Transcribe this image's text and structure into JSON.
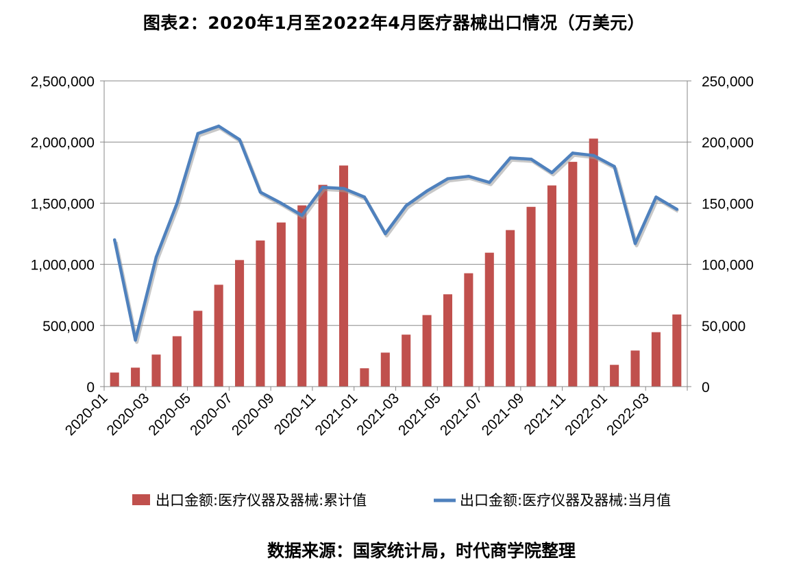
{
  "chart_data": {
    "type": "bar+line",
    "title": "图表2：2020年1月至2022年4月医疗器械出口情况（万美元）",
    "source_note": "数据来源：国家统计局，时代商学院整理",
    "categories": [
      "2020-01",
      "2020-02",
      "2020-03",
      "2020-04",
      "2020-05",
      "2020-06",
      "2020-07",
      "2020-08",
      "2020-09",
      "2020-10",
      "2020-11",
      "2020-12",
      "2021-01",
      "2021-02",
      "2021-03",
      "2021-04",
      "2021-05",
      "2021-06",
      "2021-07",
      "2021-08",
      "2021-09",
      "2021-10",
      "2021-11",
      "2021-12",
      "2022-01",
      "2022-02",
      "2022-03",
      "2022-04"
    ],
    "x_tick_labels": [
      "2020-01",
      "2020-03",
      "2020-05",
      "2020-07",
      "2020-09",
      "2020-11",
      "2021-01",
      "2021-03",
      "2021-05",
      "2021-07",
      "2021-09",
      "2021-11",
      "2022-01",
      "2022-03"
    ],
    "series": [
      {
        "name": "出口金额:医疗仪器及器械:累计值",
        "type": "bar",
        "axis": "left",
        "color": "#C0504D",
        "values": [
          115000,
          155000,
          262000,
          412000,
          620000,
          833000,
          1035000,
          1195000,
          1342000,
          1482000,
          1650000,
          1808000,
          150000,
          278000,
          425000,
          585000,
          755000,
          927000,
          1095000,
          1280000,
          1470000,
          1645000,
          1838000,
          2028000,
          178000,
          295000,
          445000,
          590000
        ]
      },
      {
        "name": "出口金额:医疗仪器及器械:当月值",
        "type": "line",
        "axis": "right",
        "color": "#4F81BD",
        "values": [
          120000,
          38000,
          106000,
          150000,
          207000,
          213000,
          202000,
          159000,
          150000,
          140000,
          163000,
          162000,
          155000,
          125000,
          148000,
          160000,
          170000,
          172000,
          167000,
          187000,
          186000,
          175000,
          191000,
          189000,
          180000,
          117000,
          155000,
          145000
        ]
      }
    ],
    "y_left": {
      "min": 0,
      "max": 2500000,
      "ticks": [
        "0",
        "500,000",
        "1,000,000",
        "1,500,000",
        "2,000,000",
        "2,500,000"
      ]
    },
    "y_right": {
      "min": 0,
      "max": 250000,
      "ticks": [
        "0",
        "50,000",
        "100,000",
        "150,000",
        "200,000",
        "250,000"
      ]
    },
    "grid": true,
    "legend_position": "bottom"
  }
}
